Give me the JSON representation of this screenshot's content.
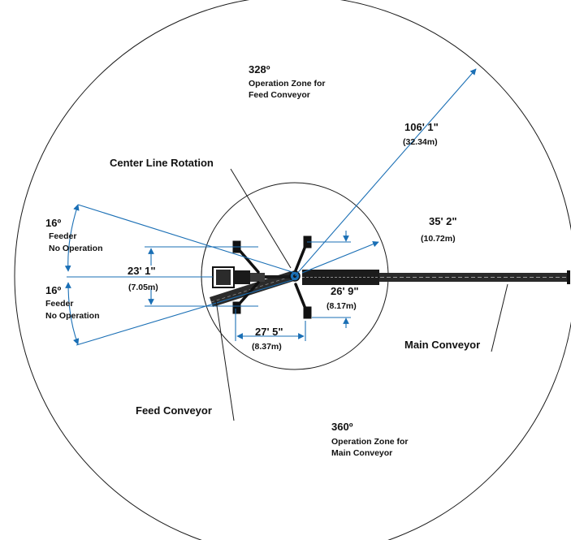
{
  "colors": {
    "dimension_line": "#1a6fb5",
    "outline": "#1a1a1a",
    "text": "#111111",
    "background": "#ffffff"
  },
  "zones": {
    "feed_angle": "328º",
    "feed_desc_1": "Operation Zone for",
    "feed_desc_2": "Feed Conveyor",
    "main_angle": "360º",
    "main_desc_1": "Operation Zone for",
    "main_desc_2": "Main Conveyor"
  },
  "dimensions": {
    "outer_radius": "106' 1\"",
    "outer_radius_metric": "(32.34m)",
    "inner_radius": "35' 2\"",
    "inner_radius_metric": "(10.72m)",
    "feed_width": "23' 1\"",
    "feed_width_metric": "(7.05m)",
    "leg_span": "26' 9\"",
    "leg_span_metric": "(8.17m)",
    "leg_base": "27' 5\"",
    "leg_base_metric": "(8.37m)"
  },
  "no_operation": {
    "upper_angle": "16º",
    "upper_line1": "Feeder",
    "upper_line2": "No Operation",
    "lower_angle": "16º",
    "lower_line1": "Feeder",
    "lower_line2": "No Operation"
  },
  "callouts": {
    "center_line_rotation": "Center Line Rotation",
    "main_conveyor": "Main Conveyor",
    "feed_conveyor": "Feed Conveyor"
  }
}
